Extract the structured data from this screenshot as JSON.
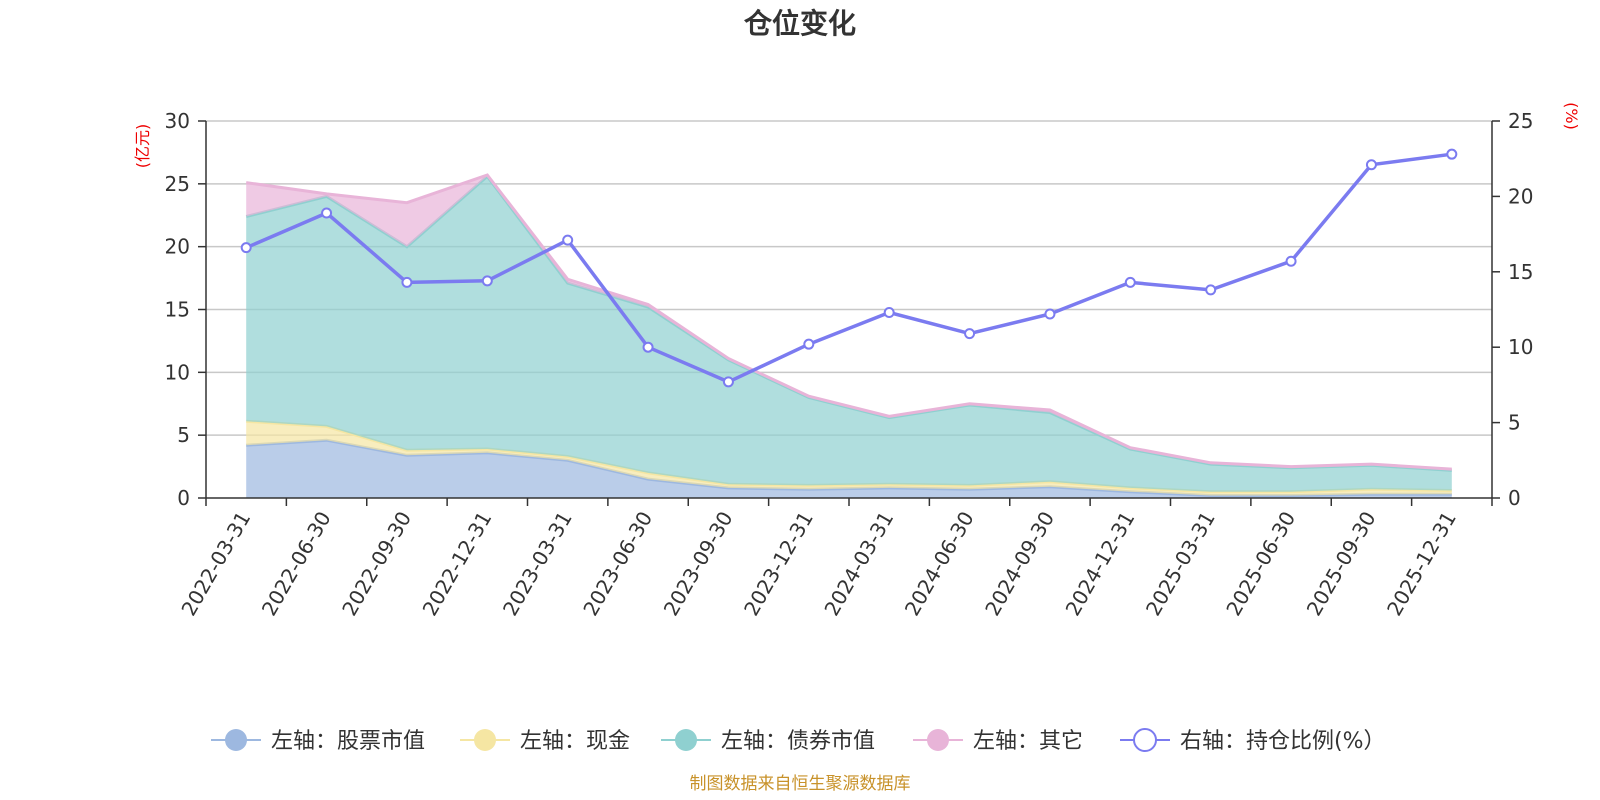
{
  "chart_data": {
    "type": "area",
    "title": "仓位变化",
    "left_unit": "(亿元)",
    "right_unit": "(%)",
    "left_ylim": [
      0,
      30
    ],
    "left_ticks": [
      "0",
      "5",
      "10",
      "15",
      "20",
      "25",
      "30"
    ],
    "right_ylim": [
      0,
      25
    ],
    "right_ticks": [
      "0",
      "5",
      "10",
      "15",
      "20",
      "25"
    ],
    "categories": [
      "2022-03-31",
      "2022-06-30",
      "2022-09-30",
      "2022-12-31",
      "2023-03-31",
      "2023-06-30",
      "2023-09-30",
      "2023-12-31",
      "2024-03-31",
      "2024-06-30",
      "2024-09-30",
      "2024-12-31",
      "2025-03-31",
      "2025-06-30",
      "2025-09-30",
      "2025-12-31"
    ],
    "series": [
      {
        "name": "左轴：股票市值",
        "axis": "left",
        "stack": true,
        "color": "#9db8e0",
        "values": [
          4.2,
          4.6,
          3.4,
          3.6,
          3.0,
          1.5,
          0.8,
          0.7,
          0.8,
          0.7,
          0.9,
          0.5,
          0.2,
          0.2,
          0.3,
          0.3
        ]
      },
      {
        "name": "左轴：现金",
        "axis": "left",
        "stack": true,
        "color": "#f5e6a3",
        "values": [
          1.9,
          1.1,
          0.4,
          0.3,
          0.3,
          0.5,
          0.3,
          0.3,
          0.3,
          0.3,
          0.4,
          0.3,
          0.3,
          0.3,
          0.4,
          0.3
        ]
      },
      {
        "name": "左轴：债券市值",
        "axis": "left",
        "stack": true,
        "color": "#8fd0d0",
        "values": [
          16.3,
          18.3,
          16.2,
          21.7,
          13.8,
          13.2,
          9.9,
          7.0,
          5.3,
          6.4,
          5.5,
          3.1,
          2.2,
          1.9,
          1.9,
          1.6
        ]
      },
      {
        "name": "左轴：其它",
        "axis": "left",
        "stack": true,
        "color": "#e8b4d8",
        "values": [
          2.7,
          0.2,
          3.5,
          0.1,
          0.3,
          0.2,
          0.1,
          0.1,
          0.1,
          0.1,
          0.2,
          0.1,
          0.1,
          0.1,
          0.1,
          0.1
        ]
      },
      {
        "name": "右轴：持仓比例(%）",
        "axis": "right",
        "stack": false,
        "color": "#7b7bf0",
        "values": [
          16.6,
          18.9,
          14.3,
          14.4,
          17.1,
          10.0,
          7.7,
          10.2,
          12.3,
          10.9,
          12.2,
          14.3,
          13.8,
          15.7,
          22.1,
          22.8
        ]
      }
    ],
    "legend_position": "bottom",
    "source": "制图数据来自恒生聚源数据库"
  }
}
